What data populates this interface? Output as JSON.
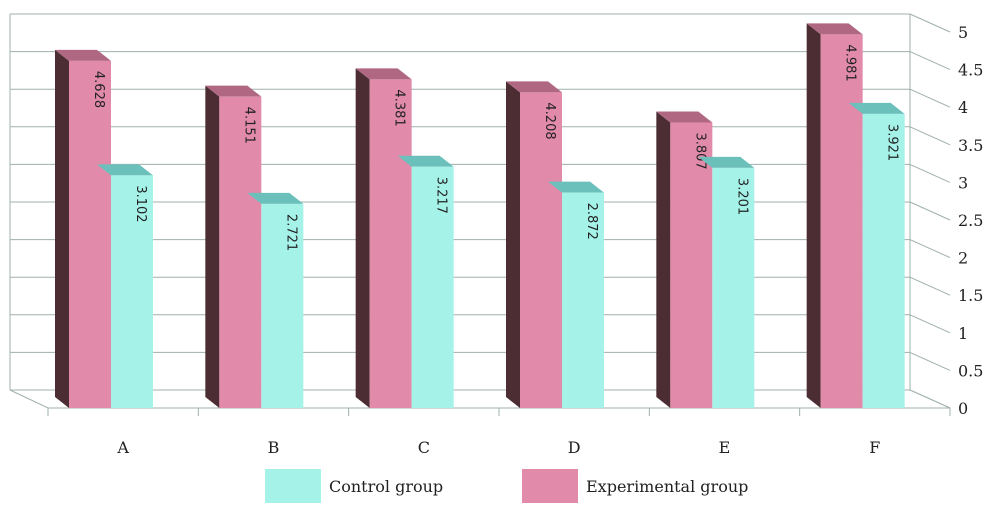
{
  "colors": {
    "control_front": "#a5f2e8",
    "control_top": "#6cc0bc",
    "experimental_front": "#e18aa9",
    "experimental_top": "#b06882",
    "experimental_side": "#4b2d33",
    "grid": "#9fb0ab"
  },
  "legend": {
    "control_label": "Control group",
    "experimental_label": "Experimental group"
  },
  "chart_data": {
    "type": "bar",
    "categories": [
      "A",
      "B",
      "C",
      "D",
      "E",
      "F"
    ],
    "series": [
      {
        "name": "Control group",
        "values": [
          3.102,
          2.721,
          3.217,
          2.872,
          3.201,
          3.921
        ]
      },
      {
        "name": "Experimental group",
        "values": [
          4.628,
          4.151,
          4.381,
          4.208,
          3.807,
          4.981
        ]
      }
    ],
    "data_labels": {
      "control": [
        "3.102",
        "2.721",
        "3.217",
        "2.872",
        "3.201",
        "3.921"
      ],
      "experimental": [
        "4.628",
        "4.151",
        "4.381",
        "4.208",
        "3.807",
        "4.981"
      ]
    },
    "ylim": [
      0,
      5
    ],
    "yticks": [
      "0",
      "0.5",
      "1",
      "1.5",
      "2",
      "2.5",
      "3",
      "3.5",
      "4",
      "4.5",
      "5"
    ],
    "grid": true,
    "three_d": true,
    "legend_position": "bottom"
  }
}
